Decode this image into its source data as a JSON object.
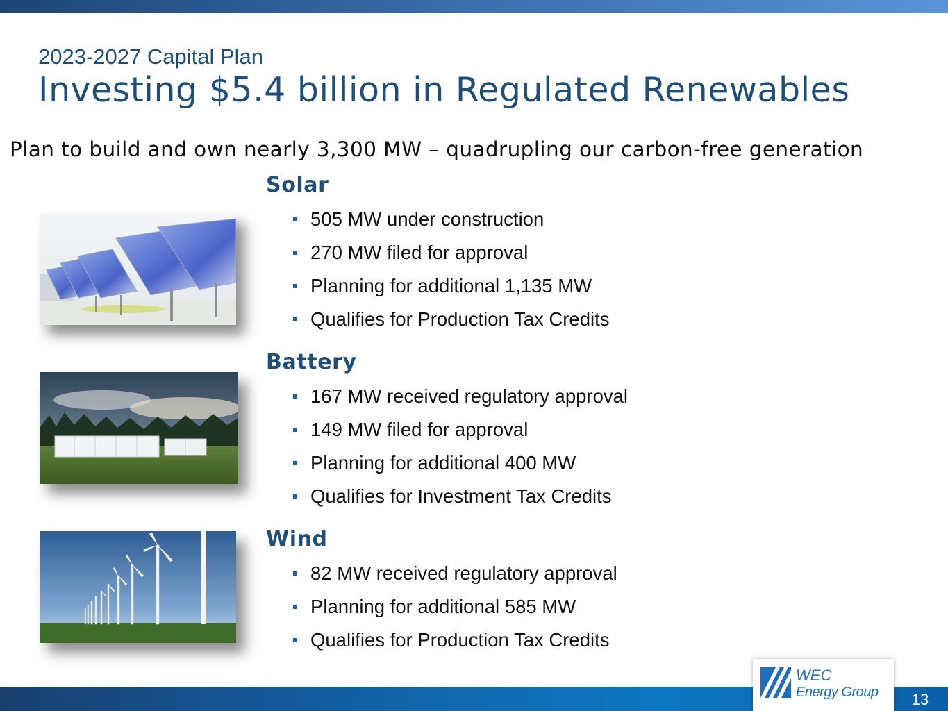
{
  "slide": {
    "kicker": "2023-2027 Capital Plan",
    "title": "Investing $5.4 billion in Regulated Renewables",
    "subtitle": "Plan to build and own nearly 3,300 MW – quadrupling our carbon-free generation",
    "page_number": "13"
  },
  "sections": [
    {
      "heading": "Solar",
      "image": "solar-panels-photo",
      "bullets": [
        "505 MW under construction",
        "270 MW filed for approval",
        "Planning for additional 1,135 MW",
        "Qualifies for Production Tax Credits"
      ]
    },
    {
      "heading": "Battery",
      "image": "battery-storage-photo",
      "bullets": [
        "167 MW received regulatory approval",
        "149 MW filed for approval",
        "Planning for additional 400 MW",
        "Qualifies for Investment Tax Credits"
      ]
    },
    {
      "heading": "Wind",
      "image": "wind-turbines-photo",
      "bullets": [
        "82 MW received regulatory approval",
        "Planning for additional 585 MW",
        "Qualifies for Production Tax Credits"
      ]
    }
  ],
  "logo": {
    "line1": "WEC",
    "line2": "Energy Group"
  },
  "colors": {
    "heading": "#1f4e79",
    "bullet": "#1f5fa3",
    "band": "#0e78c2"
  }
}
